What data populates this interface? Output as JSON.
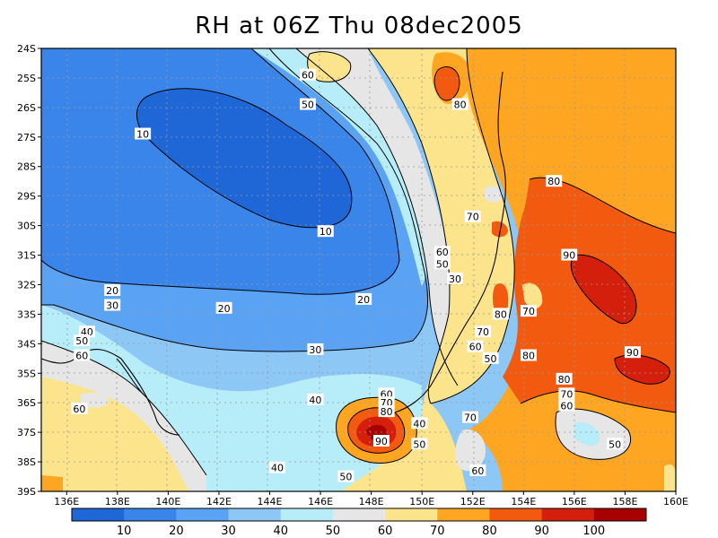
{
  "title": "RH at 06Z Thu 08dec2005",
  "chart_data": {
    "type": "contour",
    "title": "RH at 06Z Thu 08dec2005",
    "variable": "RH",
    "x_ticks": [
      "136E",
      "138E",
      "140E",
      "142E",
      "144E",
      "146E",
      "148E",
      "150E",
      "152E",
      "154E",
      "156E",
      "158E",
      "160E"
    ],
    "y_ticks": [
      "24S",
      "25S",
      "26S",
      "27S",
      "28S",
      "29S",
      "30S",
      "31S",
      "32S",
      "33S",
      "34S",
      "35S",
      "36S",
      "37S",
      "38S",
      "39S"
    ],
    "xlim": [
      135,
      160
    ],
    "ylim": [
      -39,
      -24
    ],
    "grid": true,
    "levels": [
      10,
      20,
      30,
      40,
      50,
      60,
      70,
      80,
      90,
      100
    ],
    "colorbar_labels": [
      "10",
      "20",
      "30",
      "40",
      "50",
      "60",
      "70",
      "80",
      "90",
      "100"
    ],
    "colors": [
      "#1f66d6",
      "#3a85ea",
      "#5aa2f3",
      "#8dc7f6",
      "#b7ecf9",
      "#e6e6e6",
      "#fce48c",
      "#fea621",
      "#f25a0f",
      "#d41f0c",
      "#a80000"
    ],
    "contour_labels": [
      {
        "text": "10",
        "lon": 139.0,
        "lat": -26.9
      },
      {
        "text": "10",
        "lon": 146.2,
        "lat": -30.2
      },
      {
        "text": "20",
        "lon": 137.8,
        "lat": -32.2
      },
      {
        "text": "20",
        "lon": 142.2,
        "lat": -32.8
      },
      {
        "text": "20",
        "lon": 147.7,
        "lat": -32.5
      },
      {
        "text": "30",
        "lon": 137.8,
        "lat": -32.7
      },
      {
        "text": "30",
        "lon": 145.8,
        "lat": -34.2
      },
      {
        "text": "30",
        "lon": 151.3,
        "lat": -31.8
      },
      {
        "text": "40",
        "lon": 136.8,
        "lat": -33.6
      },
      {
        "text": "40",
        "lon": 145.8,
        "lat": -35.9
      },
      {
        "text": "40",
        "lon": 144.3,
        "lat": -38.2
      },
      {
        "text": "40",
        "lon": 149.9,
        "lat": -36.7
      },
      {
        "text": "50",
        "lon": 136.6,
        "lat": -33.9
      },
      {
        "text": "50",
        "lon": 145.5,
        "lat": -25.9
      },
      {
        "text": "50",
        "lon": 147.0,
        "lat": -38.5
      },
      {
        "text": "50",
        "lon": 149.9,
        "lat": -37.4
      },
      {
        "text": "50",
        "lon": 150.8,
        "lat": -31.3
      },
      {
        "text": "50",
        "lon": 152.7,
        "lat": -34.5
      },
      {
        "text": "50",
        "lon": 157.6,
        "lat": -37.4
      },
      {
        "text": "60",
        "lon": 136.6,
        "lat": -34.4
      },
      {
        "text": "60",
        "lon": 136.5,
        "lat": -36.2
      },
      {
        "text": "60",
        "lon": 145.5,
        "lat": -24.9
      },
      {
        "text": "60",
        "lon": 148.6,
        "lat": -35.7
      },
      {
        "text": "60",
        "lon": 150.8,
        "lat": -30.9
      },
      {
        "text": "60",
        "lon": 152.1,
        "lat": -34.1
      },
      {
        "text": "60",
        "lon": 152.2,
        "lat": -38.3
      },
      {
        "text": "60",
        "lon": 155.7,
        "lat": -36.1
      },
      {
        "text": "70",
        "lon": 148.6,
        "lat": -36.0
      },
      {
        "text": "70",
        "lon": 152.0,
        "lat": -29.7
      },
      {
        "text": "70",
        "lon": 152.4,
        "lat": -33.6
      },
      {
        "text": "70",
        "lon": 151.9,
        "lat": -36.5
      },
      {
        "text": "70",
        "lon": 154.2,
        "lat": -32.9
      },
      {
        "text": "70",
        "lon": 155.7,
        "lat": -35.7
      },
      {
        "text": "80",
        "lon": 148.6,
        "lat": -36.3
      },
      {
        "text": "80",
        "lon": 151.5,
        "lat": -25.9
      },
      {
        "text": "80",
        "lon": 153.1,
        "lat": -33.0
      },
      {
        "text": "80",
        "lon": 154.2,
        "lat": -34.4
      },
      {
        "text": "80",
        "lon": 155.2,
        "lat": -28.5
      },
      {
        "text": "80",
        "lon": 155.6,
        "lat": -35.2
      },
      {
        "text": "90",
        "lon": 148.4,
        "lat": -37.3
      },
      {
        "text": "90",
        "lon": 155.8,
        "lat": -31.0
      },
      {
        "text": "90",
        "lon": 158.3,
        "lat": -34.3
      }
    ]
  }
}
